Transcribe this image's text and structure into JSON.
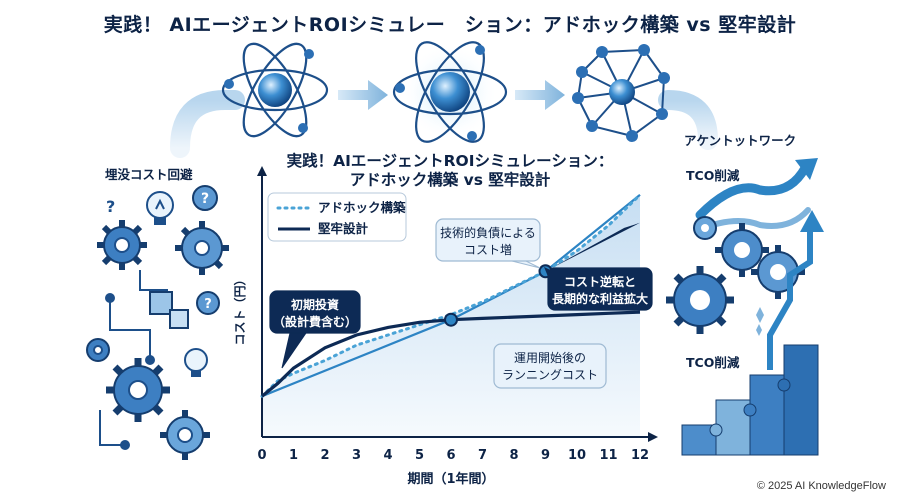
{
  "header": {
    "title": "実践！ AIエージェントROIシミュレー　ション：アドホック構築 vs 堅牢設計"
  },
  "side_labels": {
    "left": "埋没コスト回避",
    "right_top": "アケントットワーク",
    "right_mid": "TCO削減",
    "right_bottom": "TCO削減"
  },
  "chart_title": {
    "line1": "実践！AIエージェントROIシミュレーション：",
    "line2": "アドホック構築 vs 堅牢設計"
  },
  "chart_data": {
    "type": "line",
    "xlabel": "期間（1年間）",
    "ylabel": "コスト（円）",
    "x_ticks": [
      "0",
      "1",
      "2",
      "3",
      "4",
      "5",
      "6",
      "7",
      "8",
      "9",
      "10",
      "11",
      "12"
    ],
    "xlim": [
      0,
      12
    ],
    "ylim": [
      0,
      100
    ],
    "series": [
      {
        "name": "アドホック構築",
        "style": "dotted",
        "color": "#4aa3d6",
        "x": [
          0,
          0.5,
          1,
          2,
          3,
          4,
          5,
          6,
          7,
          8,
          9,
          10,
          11,
          12
        ],
        "y": [
          16,
          22,
          25,
          30,
          36,
          40,
          44,
          48,
          53,
          59,
          65,
          73,
          83,
          95
        ]
      },
      {
        "name": "堅牢設計",
        "style": "solid",
        "color": "#0d2a55",
        "x": [
          0,
          0.5,
          1,
          2,
          3,
          4,
          5,
          6,
          7,
          8,
          9,
          10,
          11,
          12
        ],
        "y": [
          16,
          21,
          27,
          35,
          40,
          43,
          45,
          46,
          46.5,
          47,
          47.5,
          48,
          48.5,
          49
        ]
      },
      {
        "name": "",
        "style": "solid",
        "color": "#2d84c4",
        "x": [
          0,
          6,
          9,
          12
        ],
        "y": [
          16,
          46,
          65,
          95
        ]
      }
    ],
    "markers": [
      {
        "x": 6,
        "y": 46
      },
      {
        "x": 9,
        "y": 65
      }
    ],
    "annotations": {
      "initial": [
        "初期投資",
        "（設計費含む）"
      ],
      "tech_debt": [
        "技術的負債による",
        "コスト増"
      ],
      "reversal": [
        "コスト逆転と",
        "長期的な利益拡大"
      ],
      "running": [
        "運用開始後の",
        "ランニングコスト"
      ]
    }
  },
  "colors": {
    "navy": "#0d2a55",
    "accent": "#2d84c4",
    "light": "#4aa3d6",
    "fill": "#cfe3f5"
  },
  "icons": [
    "atom-icon",
    "atom-glow-icon",
    "network-icon",
    "gear-icon",
    "lightbulb-icon",
    "question-icon",
    "puzzle-icon",
    "bar-growth-icon",
    "up-arrow-icon"
  ],
  "footer": "© 2025 AI KnowledgeFlow"
}
